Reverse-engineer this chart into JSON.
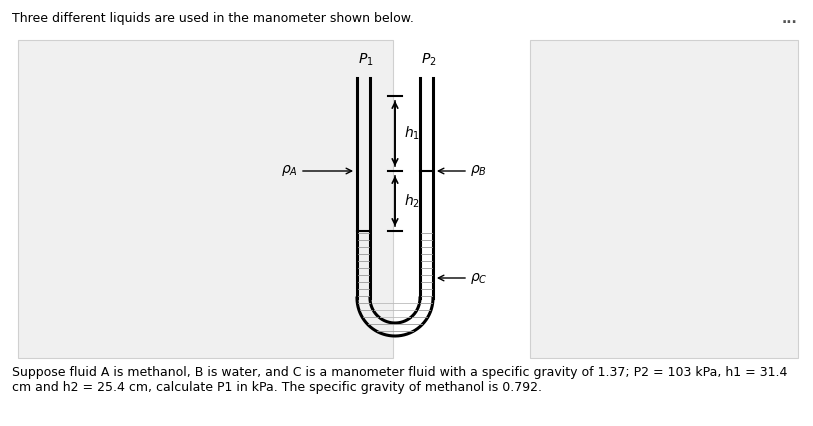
{
  "title_text": "Three different liquids are used in the manometer shown below.",
  "bottom_text": "Suppose fluid A is methanol, B is water, and C is a manometer fluid with a specific gravity of 1.37; P2 = 103 kPa, h1 = 31.4\ncm and h2 = 25.4 cm, calculate P1 in kPa. The specific gravity of methanol is 0.792.",
  "ellipsis": "...",
  "bg_color": "#f0f0f0",
  "line_color": "#000000",
  "text_color": "#000000",
  "lw_tube": 2.2,
  "lw_fluid": 1.5
}
